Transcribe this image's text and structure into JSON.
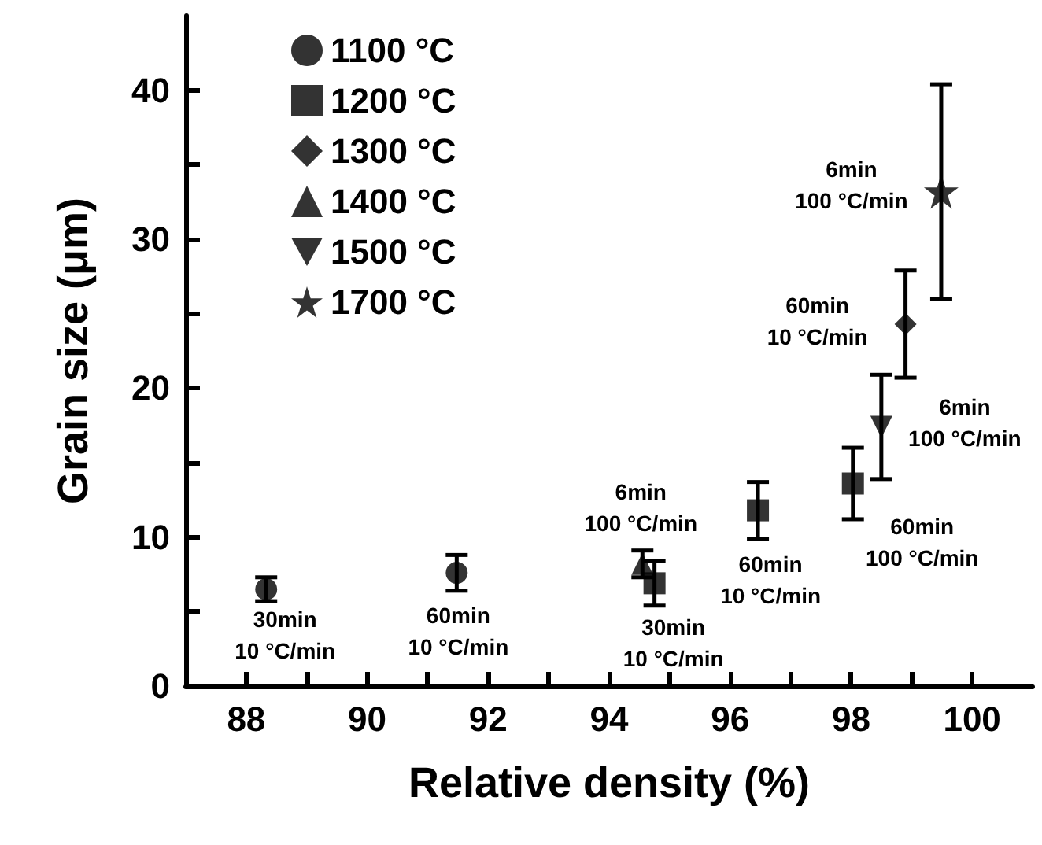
{
  "chart_data": {
    "type": "scatter",
    "xlabel": "Relative density (%)",
    "ylabel": "Grain size (μm)",
    "xlim": [
      87,
      101
    ],
    "ylim": [
      0,
      45
    ],
    "xticks": [
      88,
      {
        "value": 89,
        "label": null
      },
      90,
      {
        "value": 91,
        "label": null
      },
      92,
      {
        "value": 93,
        "label": null
      },
      94,
      {
        "value": 95,
        "label": null
      },
      96,
      {
        "value": 97,
        "label": null
      },
      98,
      {
        "value": 99,
        "label": null
      },
      100
    ],
    "yticks": [
      0,
      {
        "value": 5,
        "label": null
      },
      10,
      {
        "value": 15,
        "label": null
      },
      20,
      {
        "value": 25,
        "label": null
      },
      30,
      {
        "value": 35,
        "label": null
      },
      40
    ],
    "grid": false,
    "legend": "top left",
    "series": [
      {
        "name": "1100 °C",
        "color": "#000000",
        "marker": "circle",
        "x": [
          88.33,
          91.48
        ],
        "values": [
          6.5,
          7.6
        ],
        "errors": [
          0.8,
          1.2
        ]
      },
      {
        "name": "1200 °C",
        "color": "#000000",
        "marker": "square",
        "x": [
          94.75,
          96.46,
          98.03
        ],
        "values": [
          6.9,
          11.8,
          13.6
        ],
        "errors": [
          1.5,
          1.9,
          2.4
        ]
      },
      {
        "name": "1300 °C",
        "color": "#000000",
        "marker": "diamond",
        "x": [
          98.9
        ],
        "values": [
          24.3
        ],
        "errors": [
          3.6
        ]
      },
      {
        "name": "1400 °C",
        "color": "#000000",
        "marker": "triangle",
        "x": [
          94.55
        ],
        "values": [
          8.2
        ],
        "errors": [
          0.9
        ]
      },
      {
        "name": "1500 °C",
        "color": "#000000",
        "marker": "triangle_down",
        "x": [
          98.5
        ],
        "values": [
          17.4
        ],
        "errors": [
          3.5
        ]
      },
      {
        "name": "1700 °C",
        "color": "#000000",
        "marker": "star",
        "x": [
          99.49
        ],
        "values": [
          33.2
        ],
        "errors": [
          7.2
        ]
      }
    ],
    "annotations": [
      {
        "text": "30min\n10 °C/min",
        "x": 88.33,
        "y": 6.5
      },
      {
        "text": "60min\n10 °C/min",
        "x": 91.48,
        "y": 7.6
      },
      {
        "text": "6min\n100 °C/min",
        "x": 94.55,
        "y": 8.2
      },
      {
        "text": "30min\n10 °C/min",
        "x": 94.75,
        "y": 6.9
      },
      {
        "text": "60min\n10 °C/min",
        "x": 96.46,
        "y": 11.8
      },
      {
        "text": "60min\n100 °C/min",
        "x": 98.03,
        "y": 13.6
      },
      {
        "text": "6min\n100 °C/min",
        "x": 98.5,
        "y": 17.4
      },
      {
        "text": "60min\n10 °C/min",
        "x": 98.9,
        "y": 24.3
      },
      {
        "text": "6min\n100 °C/min",
        "x": 99.49,
        "y": 33.2
      }
    ]
  }
}
